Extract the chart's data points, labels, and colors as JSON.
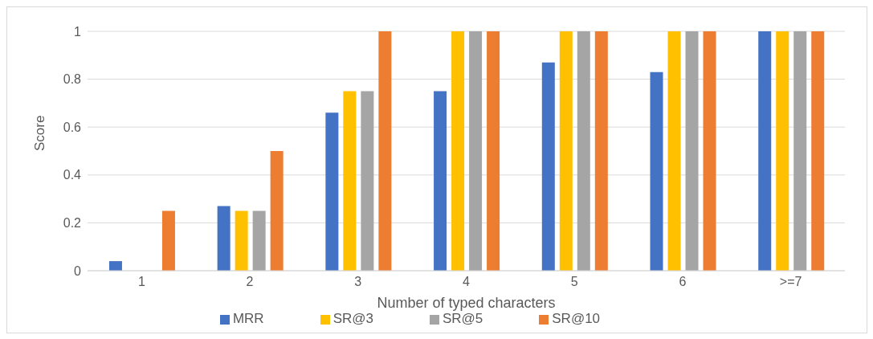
{
  "chart_data": {
    "type": "bar",
    "xlabel": "Number of typed characters",
    "ylabel": "Score",
    "categories": [
      "1",
      "2",
      "3",
      "4",
      "5",
      "6",
      ">=7"
    ],
    "series": [
      {
        "name": "MRR",
        "color": "#4472c4",
        "values": [
          0.04,
          0.27,
          0.66,
          0.75,
          0.87,
          0.83,
          1
        ]
      },
      {
        "name": "SR@3",
        "color": "#ffc000",
        "values": [
          0,
          0.25,
          0.75,
          1,
          1,
          1,
          1
        ]
      },
      {
        "name": "SR@5",
        "color": "#a5a5a5",
        "values": [
          0,
          0.25,
          0.75,
          1,
          1,
          1,
          1
        ]
      },
      {
        "name": "SR@10",
        "color": "#ed7d31",
        "values": [
          0.25,
          0.5,
          1,
          1,
          1,
          1,
          1
        ]
      }
    ],
    "ylim": [
      0,
      1
    ],
    "yticks": [
      0,
      0.2,
      0.4,
      0.6,
      0.8,
      1
    ],
    "grid": "y",
    "legend": "bottom"
  }
}
